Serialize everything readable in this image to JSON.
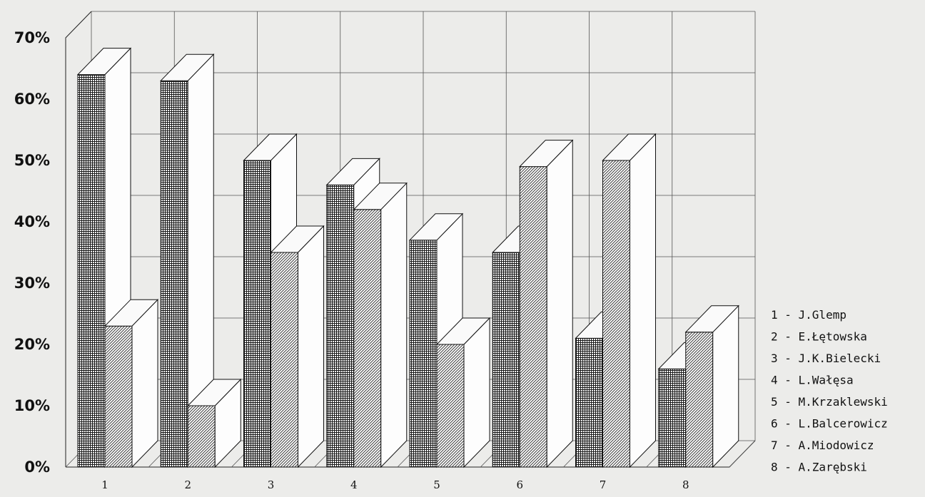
{
  "chart_data": {
    "type": "bar",
    "variant": "3d-grouped",
    "categories": [
      "1",
      "2",
      "3",
      "4",
      "5",
      "6",
      "7",
      "8"
    ],
    "y_tick_labels": [
      "0%",
      "10%",
      "20%",
      "30%",
      "40%",
      "50%",
      "60%",
      "70%"
    ],
    "ylim": [
      0,
      70
    ],
    "grid": true,
    "legend_position": "right",
    "series": [
      {
        "values": [
          64,
          63,
          50,
          46,
          37,
          35,
          21,
          16
        ],
        "pattern": "crosshatch"
      },
      {
        "values": [
          23,
          10,
          35,
          42,
          20,
          49,
          50,
          22
        ],
        "pattern": "diagonal"
      }
    ],
    "legend": [
      "1 - J.Glemp",
      "2 - E.Łętowska",
      "3 - J.K.Bielecki",
      "4 - L.Wałęsa",
      "5 - M.Krzaklewski",
      "6 - L.Balcerowicz",
      "7 - A.Miodowicz",
      "8 - A.Zarębski"
    ]
  }
}
